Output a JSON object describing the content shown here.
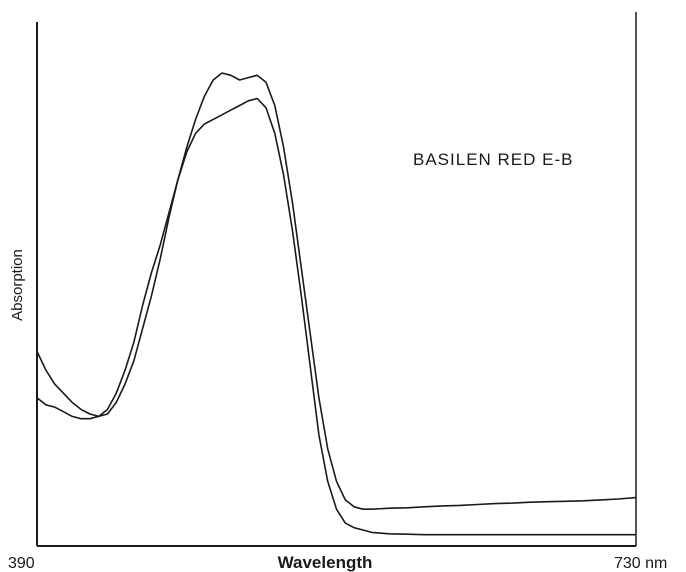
{
  "chart_data": {
    "type": "line",
    "title": "",
    "annotation": "BASILEN RED E-B",
    "xlabel": "Wavelength",
    "ylabel": "Absorption",
    "x_tick_labels": [
      "390",
      "730 nm"
    ],
    "xlim": [
      390,
      730
    ],
    "ylim": [
      0,
      1
    ],
    "grid": false,
    "legend": "none",
    "series": [
      {
        "x": [
          390,
          395,
          400,
          405,
          410,
          415,
          420,
          425,
          430,
          435,
          440,
          445,
          450,
          455,
          460,
          465,
          470,
          475,
          480,
          485,
          490,
          495,
          500,
          505,
          510,
          515,
          520,
          525,
          530,
          535,
          540,
          545,
          550,
          555,
          560,
          565,
          570,
          575,
          580,
          590,
          600,
          610,
          620,
          630,
          640,
          650,
          660,
          670,
          680,
          690,
          700,
          710,
          720,
          730
        ],
        "y": [
          0.4,
          0.36,
          0.33,
          0.31,
          0.29,
          0.275,
          0.265,
          0.26,
          0.265,
          0.29,
          0.33,
          0.38,
          0.45,
          0.52,
          0.6,
          0.69,
          0.77,
          0.84,
          0.9,
          0.95,
          0.985,
          1.0,
          0.995,
          0.985,
          0.99,
          0.995,
          0.98,
          0.93,
          0.84,
          0.72,
          0.58,
          0.44,
          0.3,
          0.19,
          0.12,
          0.08,
          0.065,
          0.06,
          0.06,
          0.062,
          0.063,
          0.065,
          0.067,
          0.068,
          0.07,
          0.072,
          0.073,
          0.075,
          0.076,
          0.077,
          0.078,
          0.08,
          0.082,
          0.085
        ]
      },
      {
        "x": [
          390,
          395,
          400,
          405,
          410,
          415,
          420,
          425,
          430,
          435,
          440,
          445,
          450,
          455,
          460,
          465,
          470,
          475,
          480,
          485,
          490,
          495,
          500,
          505,
          510,
          515,
          520,
          525,
          530,
          535,
          540,
          545,
          550,
          555,
          560,
          565,
          570,
          575,
          580,
          590,
          600,
          610,
          620,
          630,
          640,
          650,
          660,
          670,
          680,
          690,
          700,
          710,
          720,
          730
        ],
        "y": [
          0.3,
          0.285,
          0.28,
          0.27,
          0.26,
          0.255,
          0.255,
          0.26,
          0.275,
          0.31,
          0.36,
          0.42,
          0.5,
          0.57,
          0.63,
          0.7,
          0.77,
          0.83,
          0.87,
          0.89,
          0.9,
          0.91,
          0.92,
          0.93,
          0.94,
          0.945,
          0.925,
          0.87,
          0.78,
          0.66,
          0.52,
          0.37,
          0.22,
          0.12,
          0.06,
          0.03,
          0.02,
          0.015,
          0.01,
          0.007,
          0.006,
          0.005,
          0.005,
          0.005,
          0.005,
          0.005,
          0.005,
          0.005,
          0.005,
          0.005,
          0.005,
          0.005,
          0.005,
          0.005
        ]
      }
    ]
  }
}
